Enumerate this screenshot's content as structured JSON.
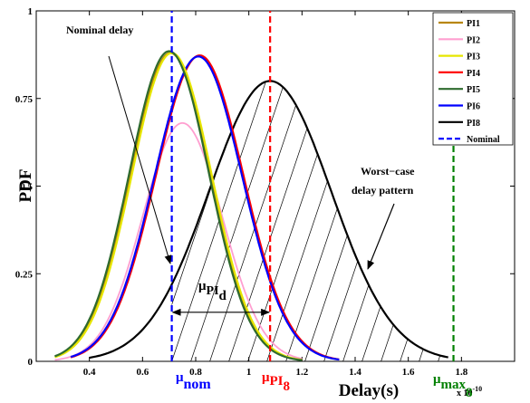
{
  "chart_data": {
    "type": "line",
    "title": "",
    "xlabel": "Delay(s)",
    "ylabel": "PDF",
    "x_exponent_label": "x 10",
    "x_exponent_power": "-10",
    "xlim": [
      0.2,
      2.0
    ],
    "ylim": [
      0,
      1
    ],
    "x_ticks": [
      0.4,
      0.6,
      0.8,
      1,
      1.2,
      1.4,
      1.6,
      1.8
    ],
    "x_tick_labels": [
      "0.4",
      "0.6",
      "0.8",
      "1",
      "1.2",
      "1.4",
      "1.6",
      "1.8"
    ],
    "y_ticks": [
      0,
      0.25,
      0.5,
      0.75,
      1
    ],
    "y_tick_labels": [
      "0",
      "0.25",
      "0.5",
      "0.75",
      "1"
    ],
    "legend_position": "top-right",
    "series": [
      {
        "name": "PI1",
        "color": "#b8860b",
        "mean": 0.705,
        "sd": 0.15,
        "peak": 0.88,
        "x_start": 0.27,
        "x_end": 1.2
      },
      {
        "name": "PI2",
        "color": "#ff9fd0",
        "mean": 0.75,
        "sd": 0.15,
        "peak": 0.68,
        "x_start": 0.27,
        "x_end": 1.2
      },
      {
        "name": "PI3",
        "color": "#e6e600",
        "mean": 0.71,
        "sd": 0.15,
        "peak": 0.88,
        "x_start": 0.27,
        "x_end": 1.2
      },
      {
        "name": "PI4",
        "color": "#ff0000",
        "mean": 0.815,
        "sd": 0.165,
        "peak": 0.873,
        "x_start": 0.33,
        "x_end": 1.34
      },
      {
        "name": "PI5",
        "color": "#2e6b2e",
        "mean": 0.7,
        "sd": 0.15,
        "peak": 0.885,
        "x_start": 0.27,
        "x_end": 1.2
      },
      {
        "name": "PI6",
        "color": "#0000ff",
        "mean": 0.81,
        "sd": 0.165,
        "peak": 0.87,
        "x_start": 0.33,
        "x_end": 1.34
      },
      {
        "name": "PI8",
        "color": "#000000",
        "mean": 1.08,
        "sd": 0.23,
        "peak": 0.8,
        "x_start": 0.4,
        "x_end": 1.75
      },
      {
        "name": "Nominal",
        "color": "#0000ff",
        "style": "dashed",
        "x": 0.71
      }
    ],
    "vertical_lines": [
      {
        "name": "mu-nom",
        "x": 0.71,
        "color": "#0000ff",
        "dashed": true,
        "y_top": 1
      },
      {
        "name": "mu-pi8",
        "x": 1.08,
        "color": "#ff0000",
        "dashed": true,
        "y_top": 1
      },
      {
        "name": "mu-max8",
        "x": 1.77,
        "color": "#008000",
        "dashed": true,
        "y_top": 0.78
      }
    ],
    "hatch_region": {
      "x_from": 0.71,
      "x_to": 1.77,
      "under_series": "PI8"
    },
    "annotations": {
      "nominal_delay": "Nominal delay",
      "worst_case_line1": "Worst−case",
      "worst_case_line2": "delay pattern",
      "mu_pid_mu": "μ",
      "mu_pid_sub": "PI",
      "mu_pid_subsub": "d",
      "arrow_y": 0.14,
      "x_markers": {
        "nom_mu": "μ",
        "nom_sub": "nom",
        "pi8_mu": "μ",
        "pi8_sub": "PI",
        "pi8_subsub": "8",
        "max_mu": "μ",
        "max_sub": "max",
        "max_subsub": "8"
      }
    }
  },
  "colors": {
    "nom": "#0000ff",
    "pi8": "#ff0000",
    "max": "#008000"
  }
}
